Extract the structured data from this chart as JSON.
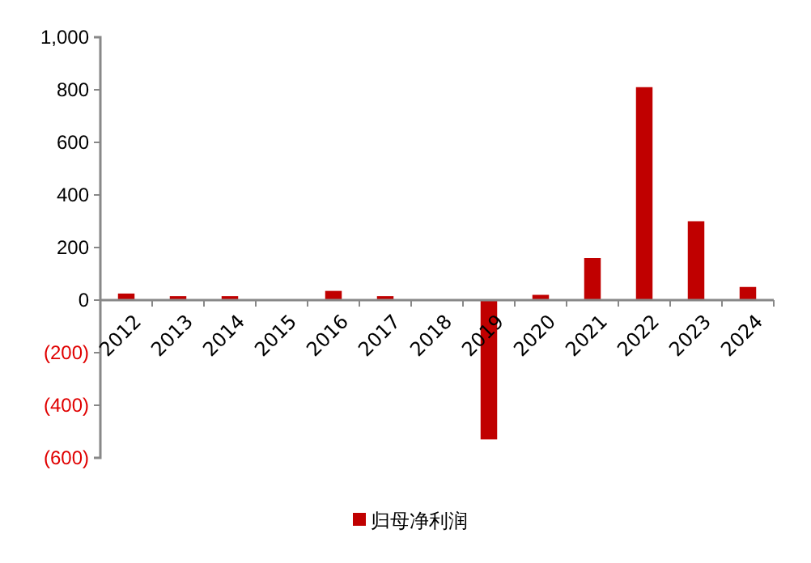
{
  "chart_data": {
    "type": "bar",
    "categories": [
      "2012",
      "2013",
      "2014",
      "2015",
      "2016",
      "2017",
      "2018",
      "2019",
      "2020",
      "2021",
      "2022",
      "2023",
      "2024"
    ],
    "series": [
      {
        "name": "归母净利润",
        "color": "#c00000",
        "values": [
          25,
          15,
          15,
          0,
          35,
          15,
          0,
          -530,
          20,
          160,
          810,
          300,
          50
        ]
      }
    ],
    "ylim": [
      -600,
      1000
    ],
    "yticks": [
      {
        "value": -600,
        "label": "(600)"
      },
      {
        "value": -400,
        "label": "(400)"
      },
      {
        "value": -200,
        "label": "(200)"
      },
      0,
      200,
      400,
      600,
      800,
      {
        "value": 1000,
        "label": "1,000"
      }
    ],
    "grid": false,
    "legend": "bottom"
  }
}
